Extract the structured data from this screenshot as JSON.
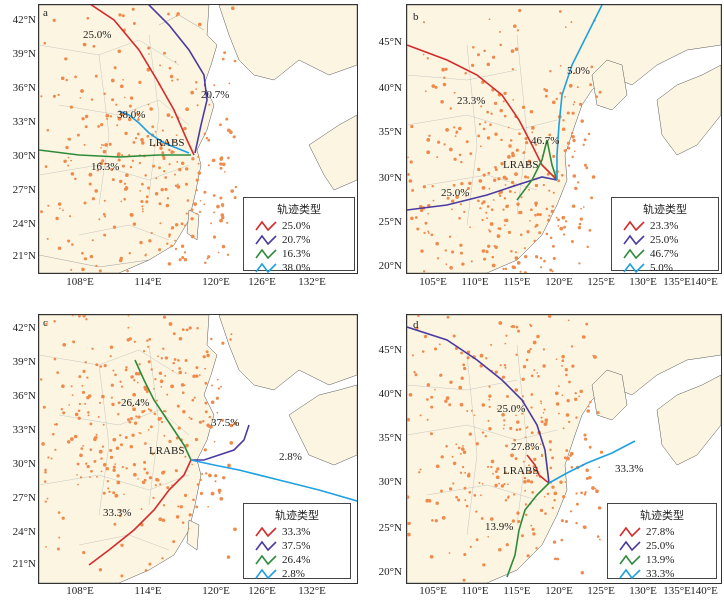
{
  "panels": [
    {
      "id": "a",
      "label": "a",
      "station": "LRABS",
      "y_labels": [
        "42°N",
        "39°N",
        "36°N",
        "33°N",
        "30°N",
        "27°N",
        "24°N",
        "21°N"
      ],
      "x_labels": [
        "108°E",
        "114°E",
        "120°E",
        "126°E",
        "132°E"
      ],
      "legend_title": "轨迹类型",
      "legend": [
        {
          "label": "25.0%",
          "color": "#d42b2b"
        },
        {
          "label": "20.7%",
          "color": "#4b3aa0"
        },
        {
          "label": "16.3%",
          "color": "#2e8b3a"
        },
        {
          "label": "38.0%",
          "color": "#1fa0e0"
        }
      ],
      "percent_labels": [
        "25.0%",
        "20.7%",
        "38.0%",
        "16.3%"
      ]
    },
    {
      "id": "b",
      "label": "b",
      "station": "LRABS",
      "y_labels": [
        "45°N",
        "40°N",
        "35°N",
        "30°N",
        "25°N",
        "20°N"
      ],
      "x_labels": [
        "105°E",
        "110°E",
        "115°E",
        "120°E",
        "125°E",
        "130°E",
        "135°E",
        "140°E"
      ],
      "legend_title": "轨迹类型",
      "legend": [
        {
          "label": "23.3%",
          "color": "#d42b2b"
        },
        {
          "label": "25.0%",
          "color": "#4b3aa0"
        },
        {
          "label": "46.7%",
          "color": "#2e8b3a"
        },
        {
          "label": "5.0%",
          "color": "#1fa0e0"
        }
      ],
      "percent_labels": [
        "5.0%",
        "23.3%",
        "46.7%",
        "25.0%"
      ]
    },
    {
      "id": "c",
      "label": "c",
      "station": "LRABS",
      "y_labels": [
        "42°N",
        "39°N",
        "36°N",
        "33°N",
        "30°N",
        "27°N",
        "24°N",
        "21°N"
      ],
      "x_labels": [
        "108°E",
        "114°E",
        "120°E",
        "126°E",
        "132°E"
      ],
      "legend_title": "轨迹类型",
      "legend": [
        {
          "label": "33.3%",
          "color": "#d42b2b"
        },
        {
          "label": "37.5%",
          "color": "#4b3aa0"
        },
        {
          "label": "26.4%",
          "color": "#2e8b3a"
        },
        {
          "label": "2.8%",
          "color": "#1fa0e0"
        }
      ],
      "percent_labels": [
        "26.4%",
        "37.5%",
        "2.8%",
        "33.3%"
      ]
    },
    {
      "id": "d",
      "label": "d",
      "station": "LRABS",
      "y_labels": [
        "45°N",
        "40°N",
        "35°N",
        "30°N",
        "25°N",
        "20°N"
      ],
      "x_labels": [
        "105°E",
        "110°E",
        "115°E",
        "120°E",
        "125°E",
        "130°E",
        "135°E",
        "140°E"
      ],
      "legend_title": "轨迹类型",
      "legend": [
        {
          "label": "27.8%",
          "color": "#d42b2b"
        },
        {
          "label": "25.0%",
          "color": "#4b3aa0"
        },
        {
          "label": "13.9%",
          "color": "#2e8b3a"
        },
        {
          "label": "33.3%",
          "color": "#1fa0e0"
        }
      ],
      "percent_labels": [
        "25.0%",
        "27.8%",
        "33.3%",
        "13.9%"
      ]
    }
  ]
}
